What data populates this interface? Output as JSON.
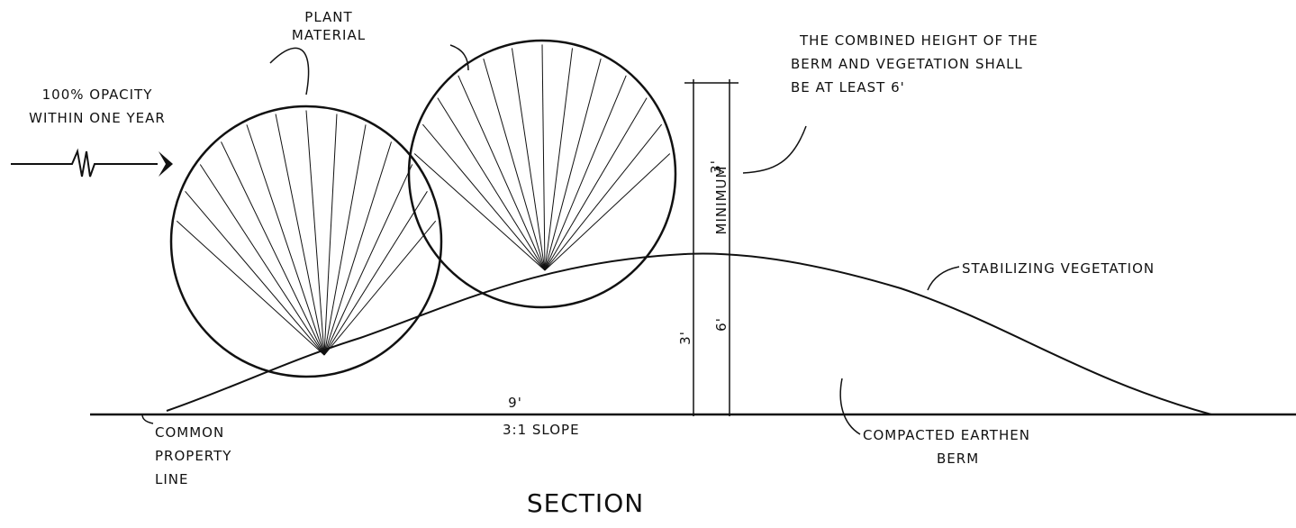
{
  "title": "SECTION",
  "plant_material": [
    "PLANT",
    "MATERIAL"
  ],
  "opacity": [
    "100% OPACITY",
    "WITHIN ONE YEAR"
  ],
  "combined_height": [
    "THE COMBINED HEIGHT OF THE",
    "BERM AND VEGETATION SHALL",
    "BE AT LEAST 6'"
  ],
  "dimensions": {
    "vegetation_height": "3'",
    "minimum": "MINIMUM",
    "total_height": "6'",
    "berm_height": "3'",
    "run": "9'",
    "slope": "3:1 SLOPE"
  },
  "stabilizing_vegetation": "STABILIZING VEGETATION",
  "property_line": [
    "COMMON",
    "PROPERTY",
    "LINE"
  ],
  "berm": [
    "COMPACTED EARTHEN",
    "BERM"
  ]
}
